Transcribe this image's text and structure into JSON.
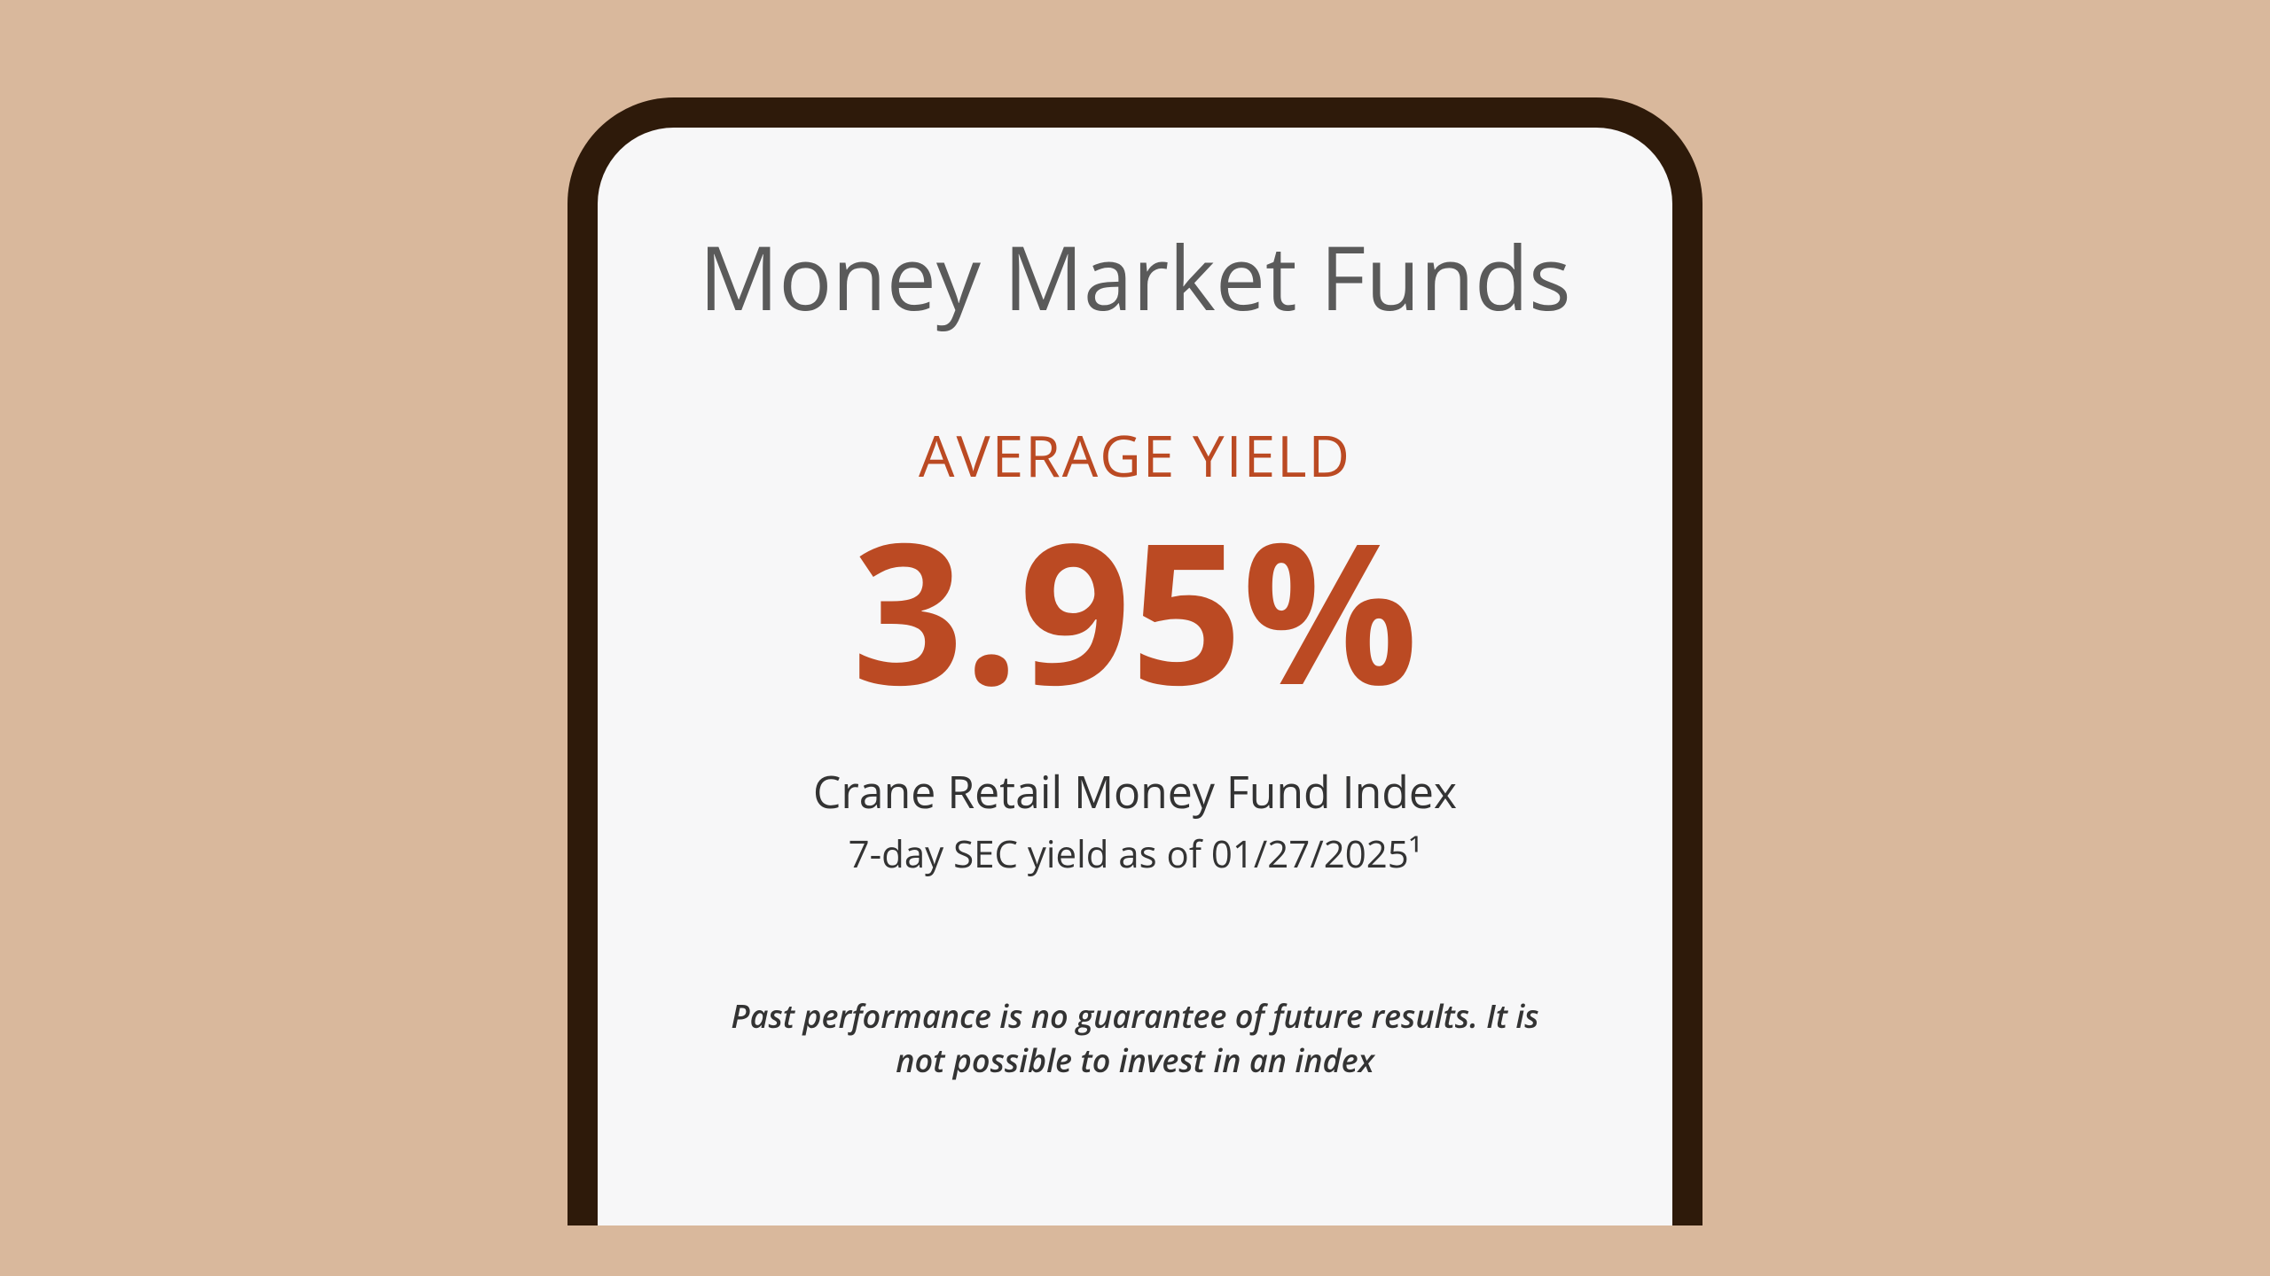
{
  "card": {
    "title": "Money Market Funds",
    "subtitle": "AVERAGE YIELD",
    "yield_value": "3.95%",
    "index_name": "Crane Retail Money Fund Index",
    "date_line": "7-day SEC yield as of 01/27/2025¹",
    "disclaimer": "Past performance is no guarantee of future results. It is not possible to invest in an index"
  },
  "styling": {
    "background_color": "#d9b89c",
    "frame_border_color": "#2e1a0a",
    "card_background": "#f7f7f8",
    "title_color": "#5a5a5a",
    "accent_color": "#bb4a23",
    "body_text_color": "#333333",
    "title_fontsize": 100,
    "subtitle_fontsize": 64,
    "yield_value_fontsize": 220,
    "index_name_fontsize": 50,
    "date_line_fontsize": 42,
    "disclaimer_fontsize": 36,
    "frame_border_width": 34,
    "frame_border_radius": 120
  }
}
